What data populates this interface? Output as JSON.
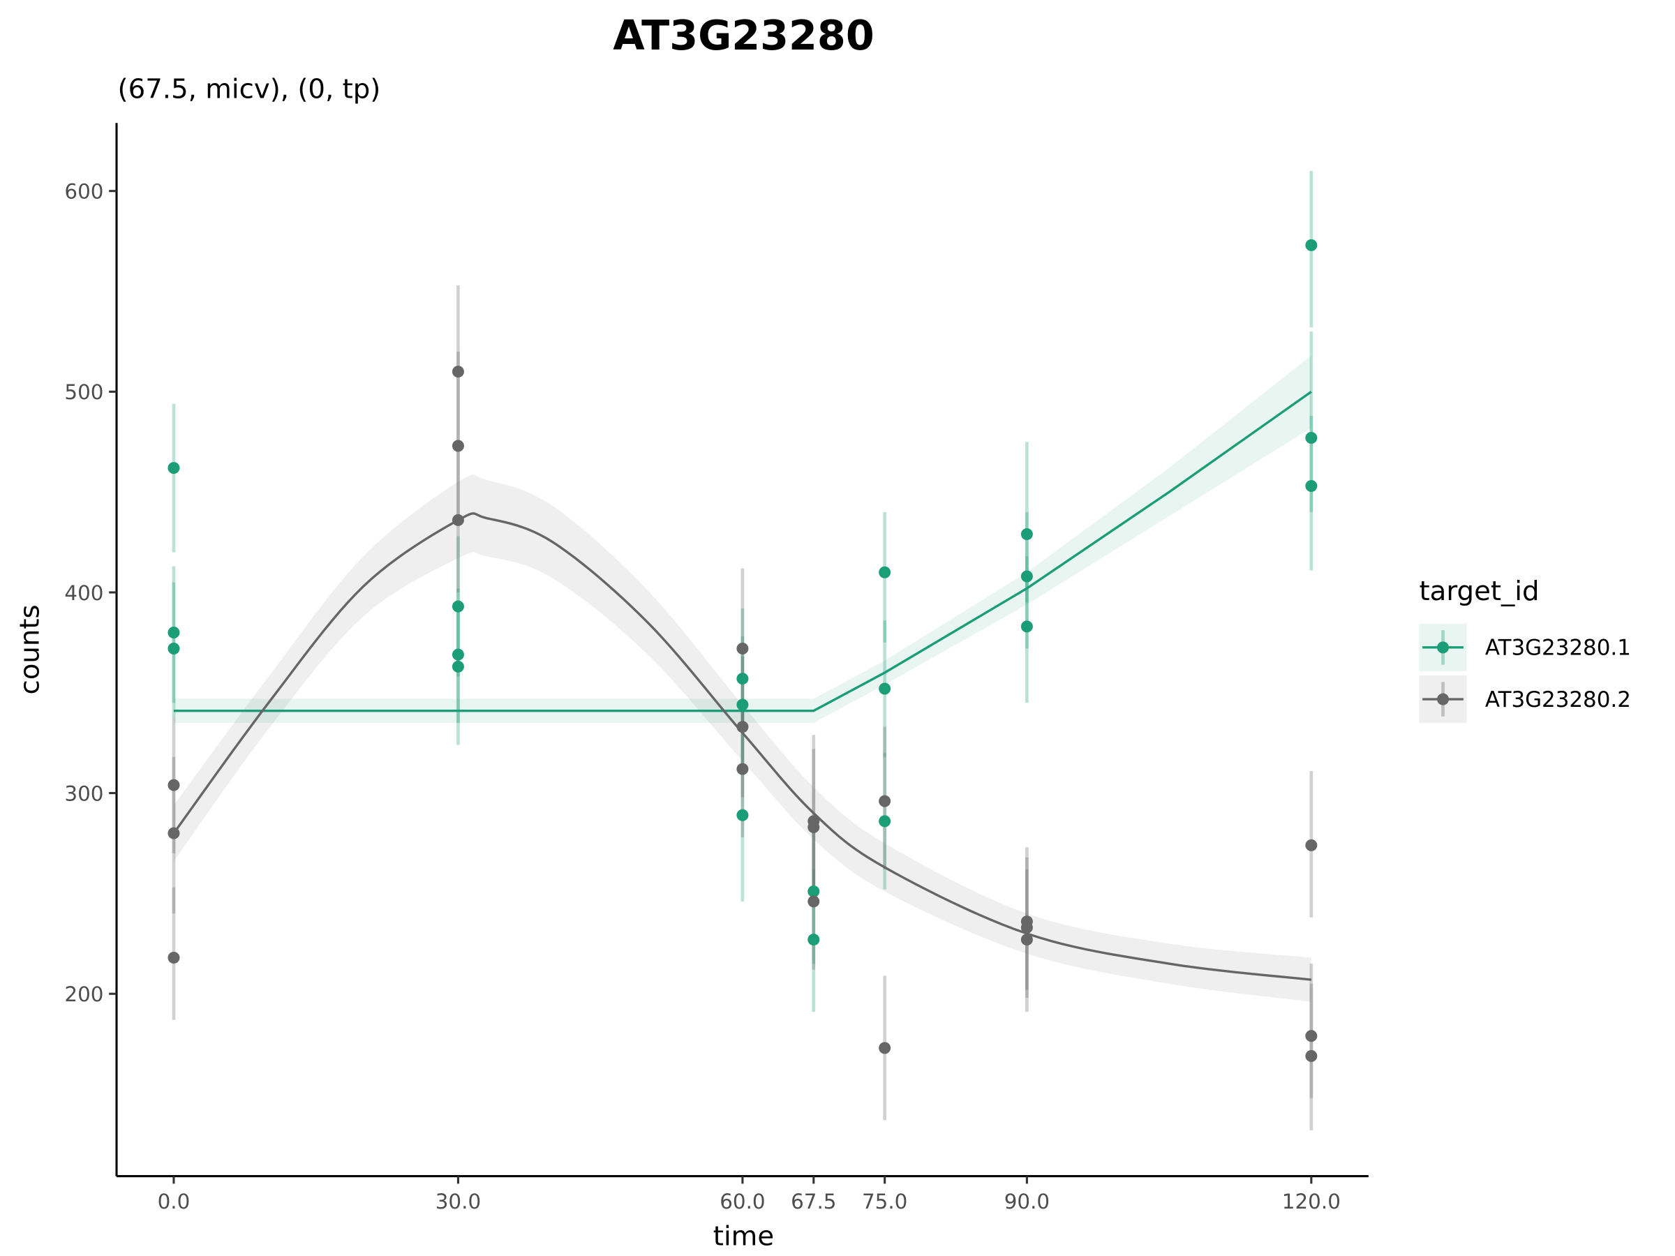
{
  "chart_data": {
    "type": "scatter",
    "title": "AT3G23280",
    "subtitle": "(67.5, micv), (0, tp)",
    "xlabel": "time",
    "ylabel": "counts",
    "xlim": [
      -4,
      124
    ],
    "ylim": [
      125,
      630
    ],
    "xticks": [
      0,
      30,
      60,
      67.5,
      75,
      90,
      120
    ],
    "xtick_labels": [
      "0.0",
      "30.0",
      "60.0",
      "67.5",
      "75.0",
      "90.0",
      "120.0"
    ],
    "yticks": [
      200,
      300,
      400,
      500,
      600
    ],
    "ytick_labels": [
      "200",
      "300",
      "400",
      "500",
      "600"
    ],
    "grid": false,
    "legend": {
      "title": "target_id",
      "placement": "right"
    },
    "series": [
      {
        "name": "AT3G23280.1",
        "color": "#1B9E77",
        "points": [
          {
            "x": 0,
            "y": 462,
            "ymin": 420,
            "ymax": 494
          },
          {
            "x": 0,
            "y": 380,
            "ymin": 345,
            "ymax": 413
          },
          {
            "x": 0,
            "y": 372,
            "ymin": 338,
            "ymax": 405
          },
          {
            "x": 30,
            "y": 393,
            "ymin": 358,
            "ymax": 428
          },
          {
            "x": 30,
            "y": 369,
            "ymin": 335,
            "ymax": 402
          },
          {
            "x": 30,
            "y": 363,
            "ymin": 324,
            "ymax": 396
          },
          {
            "x": 60,
            "y": 357,
            "ymin": 322,
            "ymax": 392
          },
          {
            "x": 60,
            "y": 344,
            "ymin": 310,
            "ymax": 378
          },
          {
            "x": 60,
            "y": 289,
            "ymin": 246,
            "ymax": 322
          },
          {
            "x": 67.5,
            "y": 251,
            "ymin": 215,
            "ymax": 285
          },
          {
            "x": 67.5,
            "y": 227,
            "ymin": 191,
            "ymax": 262
          },
          {
            "x": 75,
            "y": 410,
            "ymin": 375,
            "ymax": 440
          },
          {
            "x": 75,
            "y": 352,
            "ymin": 318,
            "ymax": 386
          },
          {
            "x": 75,
            "y": 286,
            "ymin": 252,
            "ymax": 320
          },
          {
            "x": 90,
            "y": 429,
            "ymin": 395,
            "ymax": 475
          },
          {
            "x": 90,
            "y": 408,
            "ymin": 372,
            "ymax": 440
          },
          {
            "x": 90,
            "y": 383,
            "ymin": 345,
            "ymax": 418
          },
          {
            "x": 120,
            "y": 573,
            "ymin": 532,
            "ymax": 610
          },
          {
            "x": 120,
            "y": 477,
            "ymin": 440,
            "ymax": 530
          },
          {
            "x": 120,
            "y": 453,
            "ymin": 411,
            "ymax": 488
          }
        ],
        "fit": [
          {
            "x": 0,
            "y": 341,
            "lo": 335,
            "hi": 347
          },
          {
            "x": 67.5,
            "y": 341,
            "lo": 335,
            "hi": 347
          },
          {
            "x": 75,
            "y": 360,
            "lo": 354,
            "hi": 366
          },
          {
            "x": 90,
            "y": 402,
            "lo": 394,
            "hi": 410
          },
          {
            "x": 105,
            "y": 450,
            "lo": 438,
            "hi": 462
          },
          {
            "x": 120,
            "y": 500,
            "lo": 482,
            "hi": 518
          }
        ]
      },
      {
        "name": "AT3G23280.2",
        "color": "#666666",
        "points": [
          {
            "x": 0,
            "y": 304,
            "ymin": 270,
            "ymax": 338
          },
          {
            "x": 0,
            "y": 280,
            "ymin": 240,
            "ymax": 318
          },
          {
            "x": 0,
            "y": 218,
            "ymin": 187,
            "ymax": 253
          },
          {
            "x": 30,
            "y": 510,
            "ymin": 470,
            "ymax": 553
          },
          {
            "x": 30,
            "y": 473,
            "ymin": 436,
            "ymax": 520
          },
          {
            "x": 30,
            "y": 436,
            "ymin": 400,
            "ymax": 470
          },
          {
            "x": 60,
            "y": 372,
            "ymin": 335,
            "ymax": 412
          },
          {
            "x": 60,
            "y": 333,
            "ymin": 298,
            "ymax": 368
          },
          {
            "x": 60,
            "y": 312,
            "ymin": 278,
            "ymax": 345
          },
          {
            "x": 67.5,
            "y": 286,
            "ymin": 252,
            "ymax": 329
          },
          {
            "x": 67.5,
            "y": 283,
            "ymin": 248,
            "ymax": 322
          },
          {
            "x": 67.5,
            "y": 246,
            "ymin": 212,
            "ymax": 282
          },
          {
            "x": 75,
            "y": 296,
            "ymin": 262,
            "ymax": 333
          },
          {
            "x": 75,
            "y": 173,
            "ymin": 137,
            "ymax": 209
          },
          {
            "x": 90,
            "y": 236,
            "ymin": 202,
            "ymax": 273
          },
          {
            "x": 90,
            "y": 233,
            "ymin": 198,
            "ymax": 268
          },
          {
            "x": 90,
            "y": 227,
            "ymin": 191,
            "ymax": 262
          },
          {
            "x": 120,
            "y": 274,
            "ymin": 238,
            "ymax": 311
          },
          {
            "x": 120,
            "y": 179,
            "ymin": 148,
            "ymax": 215
          },
          {
            "x": 120,
            "y": 169,
            "ymin": 132,
            "ymax": 205
          }
        ],
        "fit": [
          {
            "x": 0,
            "y": 280,
            "lo": 266,
            "hi": 294
          },
          {
            "x": 10,
            "y": 345,
            "lo": 332,
            "hi": 358
          },
          {
            "x": 20,
            "y": 403,
            "lo": 388,
            "hi": 418
          },
          {
            "x": 30,
            "y": 436,
            "lo": 417,
            "hi": 455
          },
          {
            "x": 33,
            "y": 437,
            "lo": 418,
            "hi": 456
          },
          {
            "x": 40,
            "y": 425,
            "lo": 407,
            "hi": 443
          },
          {
            "x": 50,
            "y": 385,
            "lo": 369,
            "hi": 401
          },
          {
            "x": 60,
            "y": 330,
            "lo": 316,
            "hi": 344
          },
          {
            "x": 67.5,
            "y": 290,
            "lo": 277,
            "hi": 303
          },
          {
            "x": 75,
            "y": 263,
            "lo": 251,
            "hi": 275
          },
          {
            "x": 90,
            "y": 230,
            "lo": 220,
            "hi": 240
          },
          {
            "x": 105,
            "y": 215,
            "lo": 205,
            "hi": 225
          },
          {
            "x": 120,
            "y": 207,
            "lo": 196,
            "hi": 218
          }
        ]
      }
    ]
  }
}
